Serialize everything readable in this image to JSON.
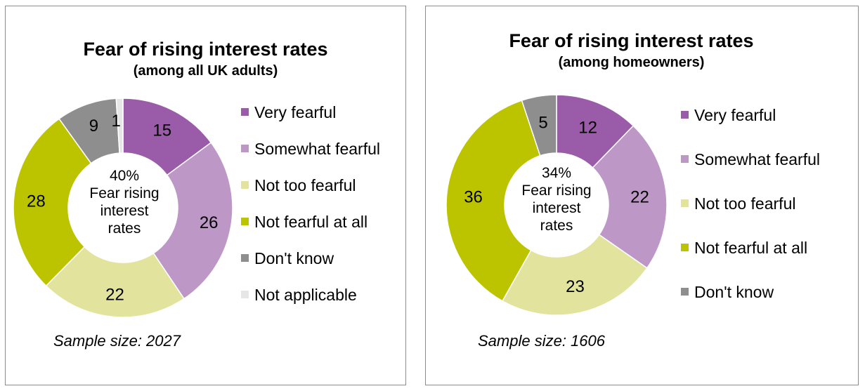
{
  "colors": {
    "very_fearful": "#9a5ba8",
    "somewhat_fearful": "#bd98c6",
    "not_too_fearful": "#e2e49e",
    "not_fearful_at_all": "#bcc400",
    "dont_know": "#8e8e8e",
    "not_applicable": "#e6e6e6"
  },
  "chart_data": [
    {
      "type": "pie",
      "subtype": "donut",
      "title": "Fear of rising interest rates",
      "subtitle": "(among all UK adults)",
      "center_percent": "40%",
      "center_lines": [
        "Fear rising",
        "interest",
        "rates"
      ],
      "categories": [
        "Very fearful",
        "Somewhat fearful",
        "Not too fearful",
        "Not fearful at all",
        "Don't know",
        "Not applicable"
      ],
      "values": [
        15,
        26,
        22,
        28,
        9,
        1
      ],
      "value_labels": [
        "15",
        "26",
        "22",
        "28",
        "9",
        "1"
      ],
      "colors": [
        "#9a5ba8",
        "#bd98c6",
        "#e2e49e",
        "#bcc400",
        "#8e8e8e",
        "#e6e6e6"
      ],
      "legend_position": "right",
      "sample_text": "Sample size: 2027"
    },
    {
      "type": "pie",
      "subtype": "donut",
      "title": "Fear of rising interest rates",
      "subtitle": "(among homeowners)",
      "center_percent": "34%",
      "center_lines": [
        "Fear rising",
        "interest",
        "rates"
      ],
      "categories": [
        "Very fearful",
        "Somewhat fearful",
        "Not too fearful",
        "Not fearful at all",
        "Don't know"
      ],
      "values": [
        12,
        22,
        23,
        36,
        5
      ],
      "value_labels": [
        "12",
        "22",
        "23",
        "36",
        "5"
      ],
      "colors": [
        "#9a5ba8",
        "#bd98c6",
        "#e2e49e",
        "#bcc400",
        "#8e8e8e"
      ],
      "legend_position": "right",
      "sample_text": "Sample size:  1606"
    }
  ]
}
